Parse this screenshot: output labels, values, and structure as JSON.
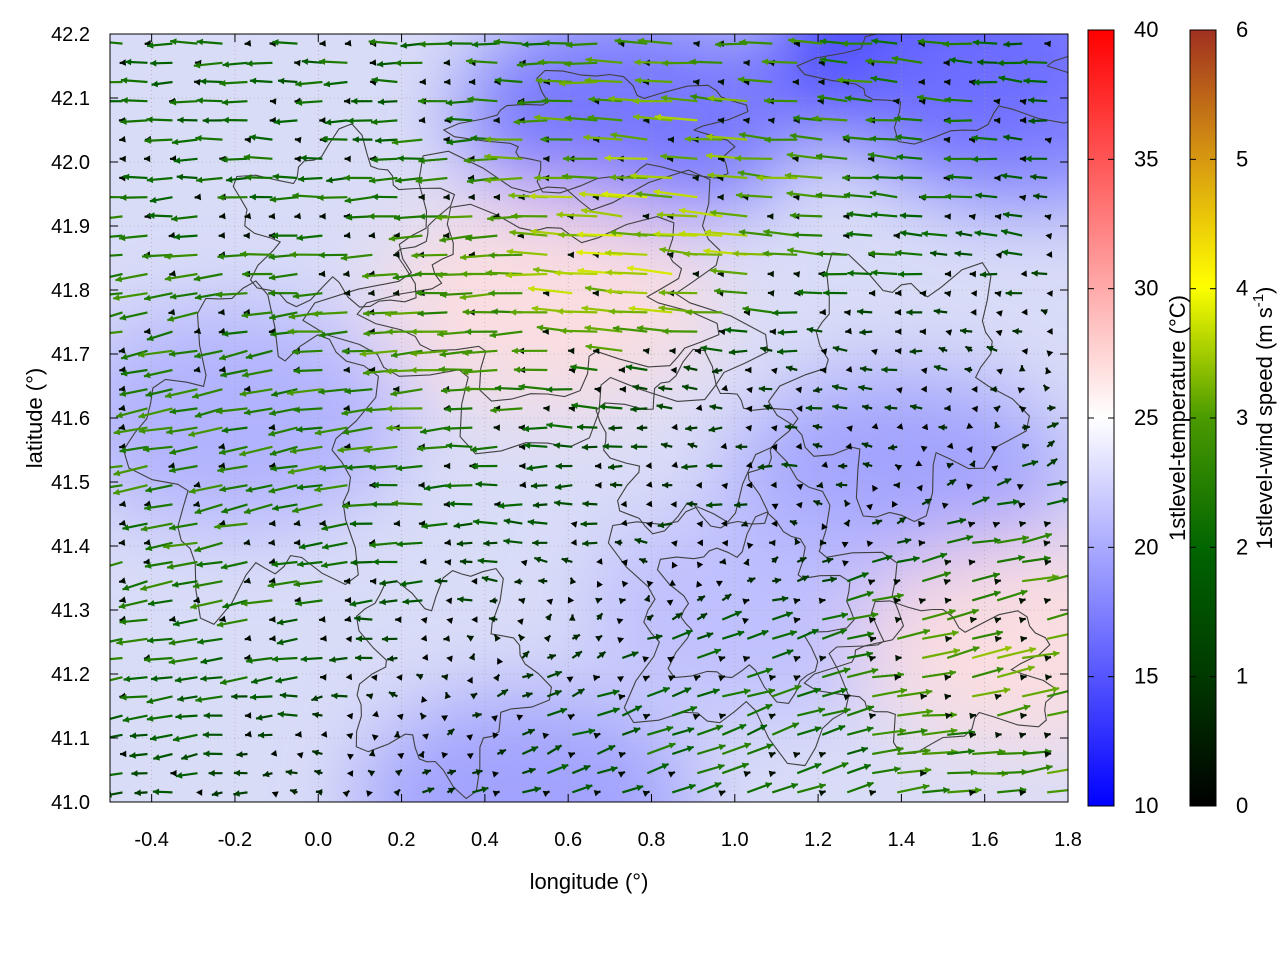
{
  "chart_data": {
    "type": "heatmap",
    "overlay": "vector-field with contour lines",
    "xlabel": "longitude (°)",
    "ylabel": "latitude (°)",
    "xlim": [
      -0.5,
      1.8
    ],
    "ylim": [
      41.0,
      42.2
    ],
    "xticks": [
      "-0.4",
      "-0.2",
      "0.0",
      "0.2",
      "0.4",
      "0.6",
      "0.8",
      "1.0",
      "1.2",
      "1.4",
      "1.6",
      "1.8"
    ],
    "yticks": [
      "41.0",
      "41.1",
      "41.2",
      "41.3",
      "41.4",
      "41.5",
      "41.6",
      "41.7",
      "41.8",
      "41.9",
      "42.0",
      "42.1",
      "42.2"
    ],
    "grid": true,
    "colorbars": [
      {
        "label": "1stlevel-temperature (°C)",
        "range": [
          10,
          40
        ],
        "ticks": [
          "10",
          "15",
          "20",
          "25",
          "30",
          "35",
          "40"
        ],
        "colors": [
          "#0000ff",
          "#ffffff",
          "#ff0000"
        ]
      },
      {
        "label_main": "1stlevel-wind speed (m s",
        "label_sup": "-1",
        "label_end": ")",
        "range": [
          0,
          6
        ],
        "ticks": [
          "0",
          "1",
          "2",
          "3",
          "4",
          "5",
          "6"
        ],
        "colors": [
          "#000000",
          "#004d00",
          "#1f7a00",
          "#7fb800",
          "#ffff00",
          "#e0a000",
          "#b05020",
          "#a03020"
        ]
      }
    ],
    "temperature_regions": [
      {
        "lon": 1.5,
        "lat": 42.18,
        "t": 12
      },
      {
        "lon": 0.75,
        "lat": 42.07,
        "t": 16
      },
      {
        "lon": 1.7,
        "lat": 42.1,
        "t": 17
      },
      {
        "lon": 1.4,
        "lat": 41.5,
        "t": 19
      },
      {
        "lon": 0.5,
        "lat": 41.0,
        "t": 19
      },
      {
        "lon": -0.2,
        "lat": 41.6,
        "t": 20
      },
      {
        "lon": 0.55,
        "lat": 41.78,
        "t": 27
      },
      {
        "lon": 1.05,
        "lat": 41.3,
        "t": 21
      },
      {
        "lon": 1.7,
        "lat": 41.25,
        "t": 27
      }
    ],
    "wind_sample": [
      {
        "lon": 0.8,
        "lat": 41.83,
        "u": -3.5,
        "v": 0.3,
        "speed": 3.5
      },
      {
        "lon": 0.3,
        "lat": 41.8,
        "u": -2.8,
        "v": -0.2,
        "speed": 2.8
      },
      {
        "lon": -0.4,
        "lat": 41.6,
        "u": -2.5,
        "v": -0.5,
        "speed": 2.6
      },
      {
        "lon": 1.55,
        "lat": 41.15,
        "u": 3.0,
        "v": 0.8,
        "speed": 3.1
      },
      {
        "lon": 1.15,
        "lat": 41.05,
        "u": 2.0,
        "v": 0.8,
        "speed": 2.2
      },
      {
        "lon": 0.0,
        "lat": 42.1,
        "u": -2.0,
        "v": 0.0,
        "speed": 2.0
      },
      {
        "lon": 1.5,
        "lat": 41.1,
        "u": 2.5,
        "v": 0.0,
        "speed": 2.5
      },
      {
        "lon": 1.0,
        "lat": 41.6,
        "u": -1.0,
        "v": 0.0,
        "speed": 1.0
      }
    ]
  }
}
